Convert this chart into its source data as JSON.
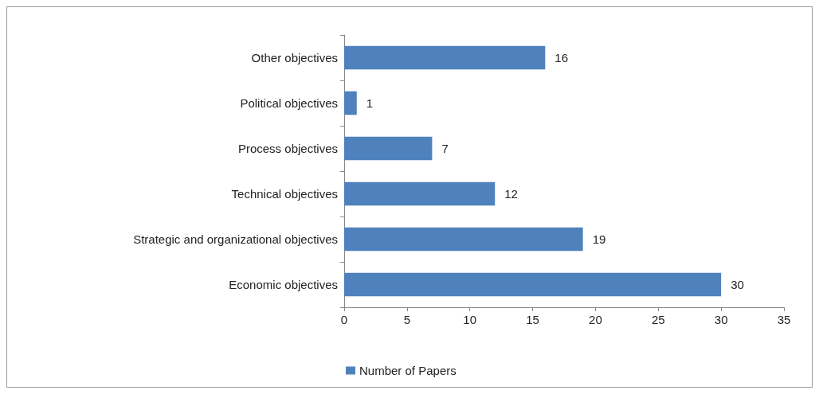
{
  "chart_data": {
    "type": "bar",
    "orientation": "horizontal",
    "categories": [
      "Other objectives",
      "Political objectives",
      "Process objectives",
      "Technical objectives",
      "Strategic and organizational objectives",
      "Economic objectives"
    ],
    "series": [
      {
        "name": "Number of Papers",
        "color": "#4f81bd",
        "values": [
          16,
          1,
          7,
          12,
          19,
          30
        ]
      }
    ],
    "xlim": [
      0,
      35
    ],
    "xticks": [
      0,
      5,
      10,
      15,
      20,
      25,
      30,
      35
    ],
    "grid": false,
    "legend": "bottom",
    "data_labels": true
  }
}
